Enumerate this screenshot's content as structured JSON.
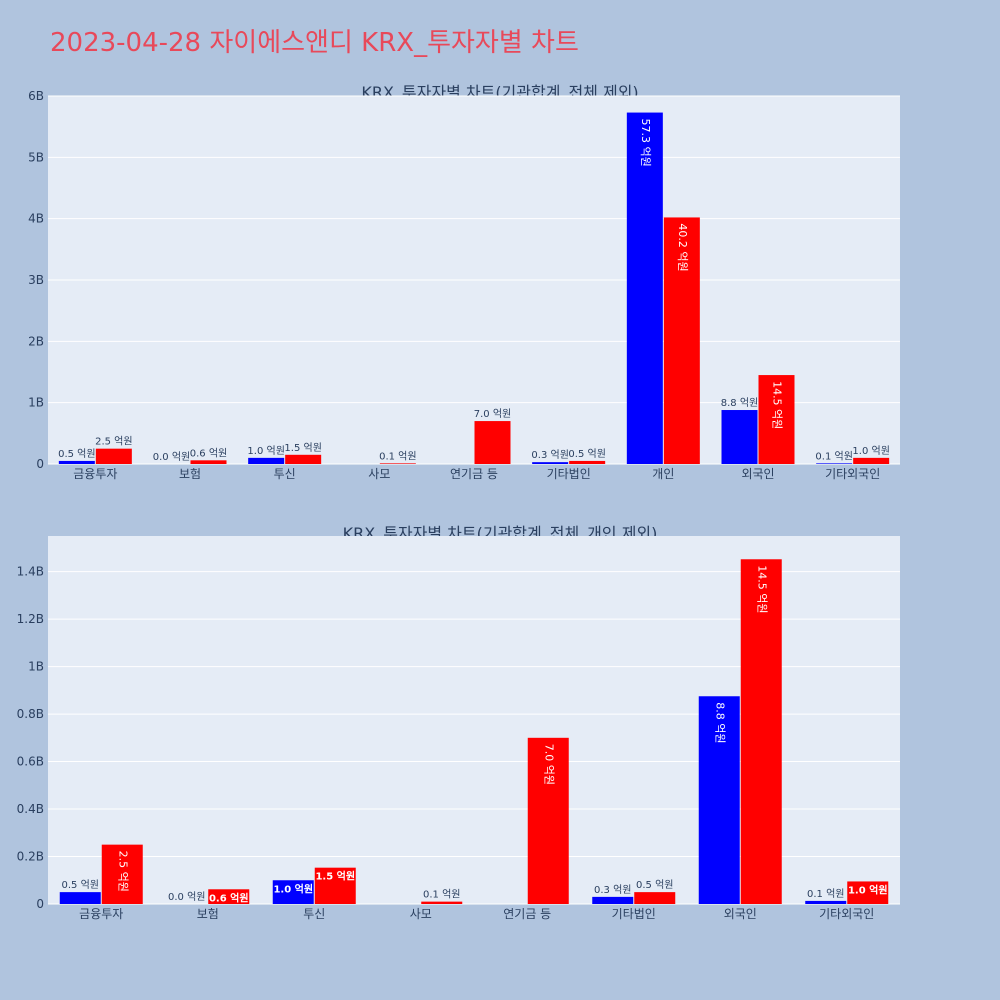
{
  "page": {
    "title": "2023-04-28 자이에스앤디 KRX_투자자별 차트"
  },
  "colors": {
    "series_a": "#0000ff",
    "series_b": "#ff0000",
    "plot_bg": "#e5ecf6",
    "page_bg": "#b0c4de",
    "title": "#e8495a"
  },
  "chart_data": [
    {
      "type": "bar",
      "title": "KRX_투자자별 차트(기관합계_전체 제외)",
      "categories": [
        "금융투자",
        "보험",
        "투신",
        "사모",
        "연기금 등",
        "기타법인",
        "개인",
        "외국인",
        "기타외국인"
      ],
      "series": [
        {
          "color": "#0000ff",
          "values": [
            0.05,
            0.0,
            0.1,
            null,
            null,
            0.03,
            5.73,
            0.88,
            0.01
          ],
          "labels": [
            "0.5 억원",
            "0.0 억원",
            "1.0 억원",
            "",
            "",
            "0.3 억원",
            "57.3 억원",
            "8.8 억원",
            "0.1 억원"
          ]
        },
        {
          "color": "#ff0000",
          "values": [
            0.25,
            0.06,
            0.15,
            0.01,
            0.7,
            0.05,
            4.02,
            1.45,
            0.1
          ],
          "labels": [
            "2.5 억원",
            "0.6 억원",
            "1.5 억원",
            "0.1 억원",
            "7.0 억원",
            "0.5 억원",
            "40.2 억원",
            "14.5 억원",
            "1.0 억원"
          ]
        }
      ],
      "ylim": [
        0,
        6
      ],
      "yticks": [
        0,
        1,
        2,
        3,
        4,
        5,
        6
      ],
      "ytick_labels": [
        "0",
        "1B",
        "2B",
        "3B",
        "4B",
        "5B",
        "6B"
      ],
      "grid": true,
      "legend": "none"
    },
    {
      "type": "bar",
      "title": "KRX_투자자별 차트(기관합계_전체_개인 제외)",
      "categories": [
        "금융투자",
        "보험",
        "투신",
        "사모",
        "연기금 등",
        "기타법인",
        "외국인",
        "기타외국인"
      ],
      "series": [
        {
          "color": "#0000ff",
          "values": [
            0.05,
            0.0,
            0.1,
            null,
            null,
            0.03,
            0.875,
            0.013
          ],
          "labels": [
            "0.5 억원",
            "0.0 억원",
            "1.0 억원",
            "",
            "",
            "0.3 억원",
            "8.8 억원",
            "0.1 억원"
          ]
        },
        {
          "color": "#ff0000",
          "values": [
            0.25,
            0.062,
            0.153,
            0.01,
            0.7,
            0.05,
            1.452,
            0.095
          ],
          "labels": [
            "2.5 억원",
            "0.6 억원",
            "1.5 억원",
            "0.1 억원",
            "7.0 억원",
            "0.5 억원",
            "14.5 억원",
            "1.0 억원"
          ]
        }
      ],
      "ylim": [
        0,
        1.55
      ],
      "yticks": [
        0,
        0.2,
        0.4,
        0.6,
        0.8,
        1.0,
        1.2,
        1.4
      ],
      "ytick_labels": [
        "0",
        "0.2B",
        "0.4B",
        "0.6B",
        "0.8B",
        "1B",
        "1.2B",
        "1.4B"
      ],
      "grid": true,
      "legend": "none"
    }
  ]
}
